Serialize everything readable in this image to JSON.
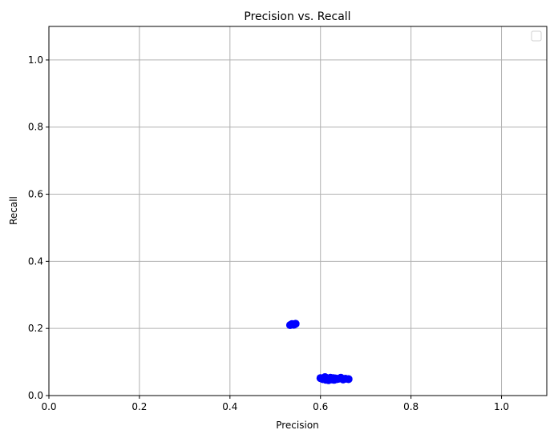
{
  "chart_data": {
    "type": "scatter",
    "title": "Precision vs. Recall",
    "xlabel": "Precision",
    "ylabel": "Recall",
    "xlim": [
      0.0,
      1.1
    ],
    "ylim": [
      0.0,
      1.1
    ],
    "xticks": [
      0.0,
      0.2,
      0.4,
      0.6,
      0.8,
      1.0
    ],
    "yticks": [
      0.0,
      0.2,
      0.4,
      0.6,
      0.8,
      1.0
    ],
    "xtick_labels": [
      "0.0",
      "0.2",
      "0.4",
      "0.6",
      "0.8",
      "1.0"
    ],
    "ytick_labels": [
      "0.0",
      "0.2",
      "0.4",
      "0.6",
      "0.8",
      "1.0"
    ],
    "grid": true,
    "legend": {
      "placement": "top-right",
      "entries": []
    },
    "series": [
      {
        "color": "#0000ff",
        "x": [
          0.533,
          0.537,
          0.541,
          0.545,
          0.6,
          0.605,
          0.61,
          0.612,
          0.615,
          0.618,
          0.62,
          0.622,
          0.625,
          0.628,
          0.63,
          0.633,
          0.636,
          0.64,
          0.645,
          0.65,
          0.655,
          0.662
        ],
        "y": [
          0.21,
          0.213,
          0.211,
          0.214,
          0.052,
          0.049,
          0.055,
          0.047,
          0.051,
          0.046,
          0.05,
          0.053,
          0.048,
          0.052,
          0.047,
          0.051,
          0.049,
          0.05,
          0.053,
          0.048,
          0.05,
          0.049
        ]
      }
    ]
  }
}
